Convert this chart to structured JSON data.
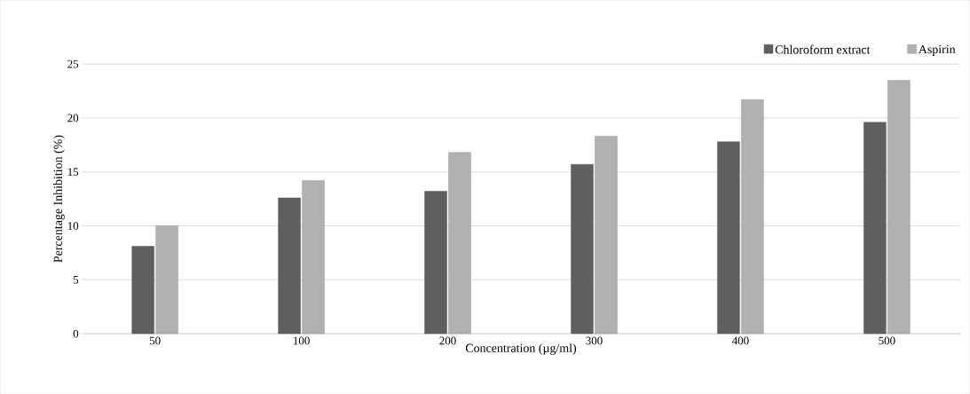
{
  "chart_data": {
    "type": "bar",
    "xlabel": "Concentration (µg/ml)",
    "ylabel": "Percentage Inhibition (%)",
    "categories": [
      "50",
      "100",
      "200",
      "300",
      "400",
      "500"
    ],
    "series": [
      {
        "name": "Chloroform extract",
        "color": "#5f5f5f",
        "values": [
          8.1,
          12.6,
          13.2,
          15.7,
          17.8,
          19.6
        ]
      },
      {
        "name": "Aspirin",
        "color": "#b1b1b1",
        "values": [
          10.0,
          14.2,
          16.8,
          18.3,
          21.7,
          23.5
        ]
      }
    ],
    "ylim": [
      0,
      25
    ],
    "yticks": [
      0,
      5,
      10,
      15,
      20,
      25
    ],
    "grid": "y",
    "legend": "top right"
  }
}
